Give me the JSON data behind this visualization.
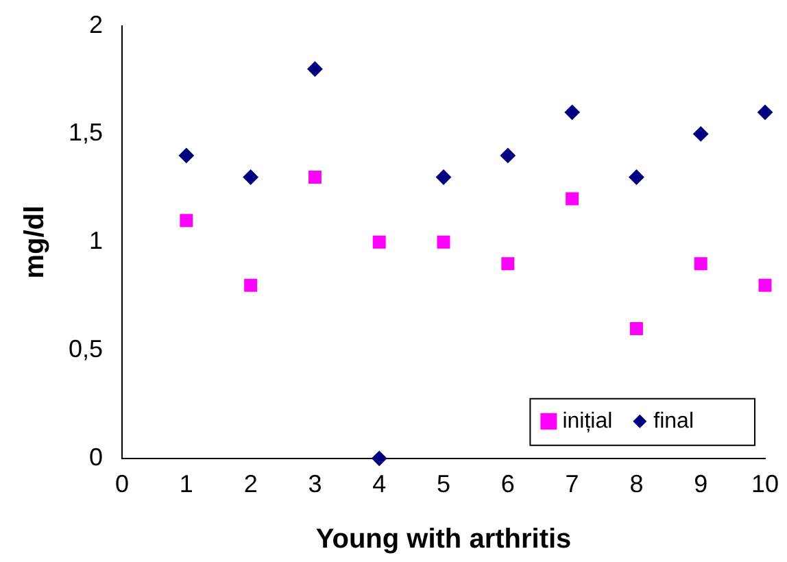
{
  "chart_data": {
    "type": "scatter",
    "xlabel": "Young with arthritis",
    "ylabel": "mg/dl",
    "x": [
      1,
      2,
      3,
      4,
      5,
      6,
      7,
      8,
      9,
      10
    ],
    "series": [
      {
        "name": "inițial",
        "color": "#ff00ff",
        "marker": "square",
        "values": [
          1.1,
          0.8,
          1.3,
          1.0,
          1.0,
          0.9,
          1.2,
          0.6,
          0.9,
          0.8
        ]
      },
      {
        "name": "final",
        "color": "#000080",
        "marker": "diamond",
        "values": [
          1.4,
          1.3,
          1.8,
          0,
          1.3,
          1.4,
          1.6,
          1.3,
          1.5,
          1.6
        ]
      }
    ],
    "xlim": [
      0,
      10
    ],
    "xticks": [
      0,
      1,
      2,
      3,
      4,
      5,
      6,
      7,
      8,
      9,
      10
    ],
    "ylim": [
      0,
      2
    ],
    "yticks": [
      0,
      {
        "value": 0.5,
        "label": "0,5"
      },
      1,
      {
        "value": 1.5,
        "label": "1,5"
      },
      2
    ],
    "grid": false,
    "legend": "bottom right"
  }
}
